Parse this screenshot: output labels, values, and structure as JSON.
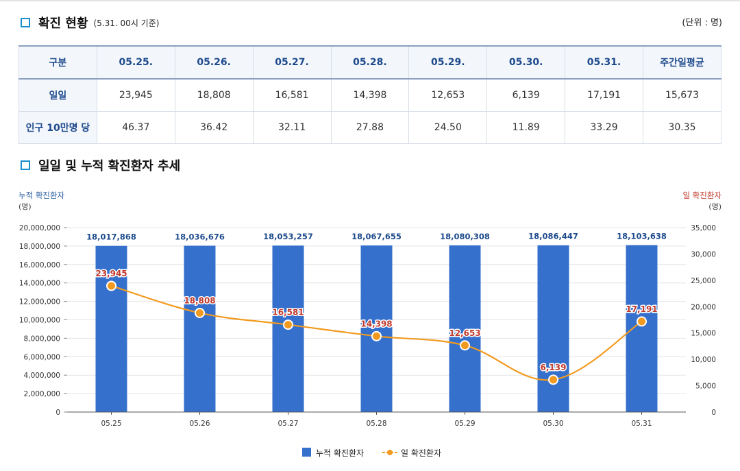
{
  "section1": {
    "title": "확진 현황",
    "subtitle": "(5.31. 00시 기준)",
    "unit": "(단위 : 명)"
  },
  "table": {
    "header_label": "구분",
    "columns": [
      "05.25.",
      "05.26.",
      "05.27.",
      "05.28.",
      "05.29.",
      "05.30.",
      "05.31.",
      "주간일평균"
    ],
    "rows": [
      {
        "label": "일일",
        "values": [
          "23,945",
          "18,808",
          "16,581",
          "14,398",
          "12,653",
          "6,139",
          "17,191",
          "15,673"
        ]
      },
      {
        "label": "인구 10만명 당",
        "values": [
          "46.37",
          "36.42",
          "32.11",
          "27.88",
          "24.50",
          "11.89",
          "33.29",
          "30.35"
        ]
      }
    ]
  },
  "section2": {
    "title": "일일 및 누적 확진환자 추세"
  },
  "chart_data": {
    "type": "bar+line",
    "categories": [
      "05.25",
      "05.26",
      "05.27",
      "05.28",
      "05.29",
      "05.30",
      "05.31"
    ],
    "series": [
      {
        "name": "누적 확진환자",
        "type": "bar",
        "axis": "left",
        "color": "#3570cc",
        "values": [
          18017868,
          18036676,
          18053257,
          18067655,
          18080308,
          18086447,
          18103638
        ],
        "labels": [
          "18,017,868",
          "18,036,676",
          "18,053,257",
          "18,067,655",
          "18,080,308",
          "18,086,447",
          "18,103,638"
        ]
      },
      {
        "name": "일 확진환자",
        "type": "line",
        "axis": "right",
        "color": "#f29a1f",
        "values": [
          23945,
          18808,
          16581,
          14398,
          12653,
          6139,
          17191
        ],
        "labels": [
          "23,945",
          "18,808",
          "16,581",
          "14,398",
          "12,653",
          "6,139",
          "17,191"
        ]
      }
    ],
    "left_axis": {
      "title": "누적 확진환자",
      "unit": "(명)",
      "range": [
        0,
        20000000
      ],
      "ticks": [
        "0",
        "2,000,000",
        "4,000,000",
        "6,000,000",
        "8,000,000",
        "10,000,000",
        "12,000,000",
        "14,000,000",
        "16,000,000",
        "18,000,000",
        "20,000,000"
      ]
    },
    "right_axis": {
      "title": "일 확진환자",
      "unit": "(명)",
      "range": [
        0,
        35000
      ],
      "ticks": [
        "0",
        "5,000",
        "10,000",
        "15,000",
        "20,000",
        "25,000",
        "30,000",
        "35,000"
      ]
    },
    "legend": {
      "position": "bottom-center",
      "items": [
        "누적 확진환자",
        "일 확진환자"
      ]
    },
    "colors": {
      "left_title": "#2a5d9f",
      "right_title": "#c0392b",
      "bar_label": "#1d4a8c",
      "line_label": "#c0392b"
    }
  }
}
